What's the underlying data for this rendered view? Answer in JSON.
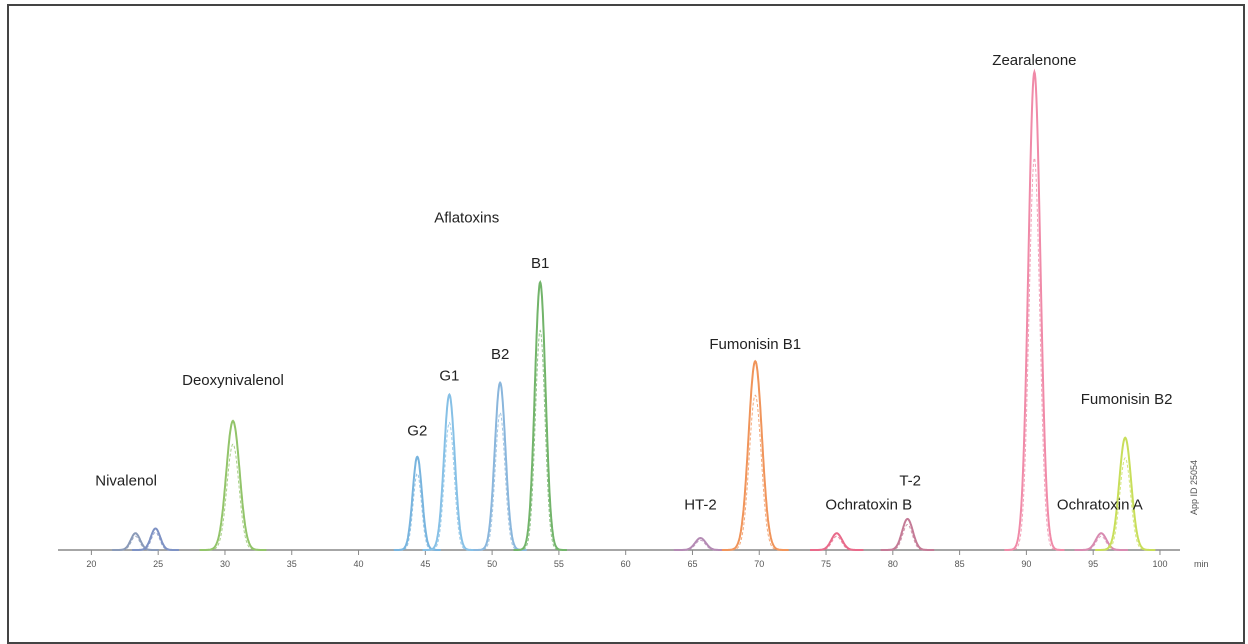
{
  "chart_data": {
    "type": "line",
    "title": "",
    "xlabel": "min",
    "ylabel": "",
    "xlim": [
      17.5,
      101.5
    ],
    "ylim": [
      0,
      100
    ],
    "grid": false,
    "xticks": [
      20,
      25,
      30,
      35,
      40,
      45,
      50,
      55,
      60,
      65,
      70,
      75,
      80,
      85,
      90,
      95,
      100
    ],
    "watermark": "App ID 25054",
    "peaks": [
      {
        "x": 23.3,
        "height": 3.5,
        "width": 0.35,
        "color": "#8a9ab8"
      },
      {
        "x": 24.8,
        "height": 4.5,
        "width": 0.35,
        "color": "#7e92c4"
      },
      {
        "x": 30.6,
        "height": 27,
        "width": 0.5,
        "color": "#92c46a"
      },
      {
        "x": 44.4,
        "height": 19.5,
        "width": 0.35,
        "color": "#78b4de"
      },
      {
        "x": 46.8,
        "height": 32.5,
        "width": 0.4,
        "color": "#86c0e6"
      },
      {
        "x": 50.6,
        "height": 35,
        "width": 0.4,
        "color": "#8ab6dc"
      },
      {
        "x": 53.6,
        "height": 56,
        "width": 0.4,
        "color": "#72b46a"
      },
      {
        "x": 65.6,
        "height": 2.5,
        "width": 0.4,
        "color": "#b48ab4"
      },
      {
        "x": 69.7,
        "height": 39.5,
        "width": 0.5,
        "color": "#f0945a"
      },
      {
        "x": 75.8,
        "height": 3.5,
        "width": 0.4,
        "color": "#e86a8a"
      },
      {
        "x": 81.1,
        "height": 6.5,
        "width": 0.4,
        "color": "#c47a96"
      },
      {
        "x": 90.6,
        "height": 100,
        "width": 0.45,
        "color": "#f08aa8"
      },
      {
        "x": 95.6,
        "height": 3.5,
        "width": 0.4,
        "color": "#d88ab0"
      },
      {
        "x": 97.4,
        "height": 23.5,
        "width": 0.45,
        "color": "#c8de5a"
      }
    ],
    "annotations": [
      {
        "text": "Nivalenol",
        "x": 22.6,
        "y": 13.5
      },
      {
        "text": "Deoxynivalenol",
        "x": 30.6,
        "y": 34.5
      },
      {
        "text": "Aflatoxins",
        "x": 48.1,
        "y": 68.5
      },
      {
        "text": "G2",
        "x": 44.4,
        "y": 24
      },
      {
        "text": "G1",
        "x": 46.8,
        "y": 35.5
      },
      {
        "text": "B2",
        "x": 50.6,
        "y": 40
      },
      {
        "text": "B1",
        "x": 53.6,
        "y": 59
      },
      {
        "text": "HT-2",
        "x": 65.6,
        "y": 8.5
      },
      {
        "text": "Fumonisin B1",
        "x": 69.7,
        "y": 42
      },
      {
        "text": "Ochratoxin B",
        "x": 78.2,
        "y": 8.5
      },
      {
        "text": "T-2",
        "x": 81.3,
        "y": 13.5
      },
      {
        "text": "Zearalenone",
        "x": 90.6,
        "y": 101.5
      },
      {
        "text": "Ochratoxin A",
        "x": 95.5,
        "y": 8.5
      },
      {
        "text": "Fumonisin B2",
        "x": 97.5,
        "y": 30.5
      }
    ]
  }
}
